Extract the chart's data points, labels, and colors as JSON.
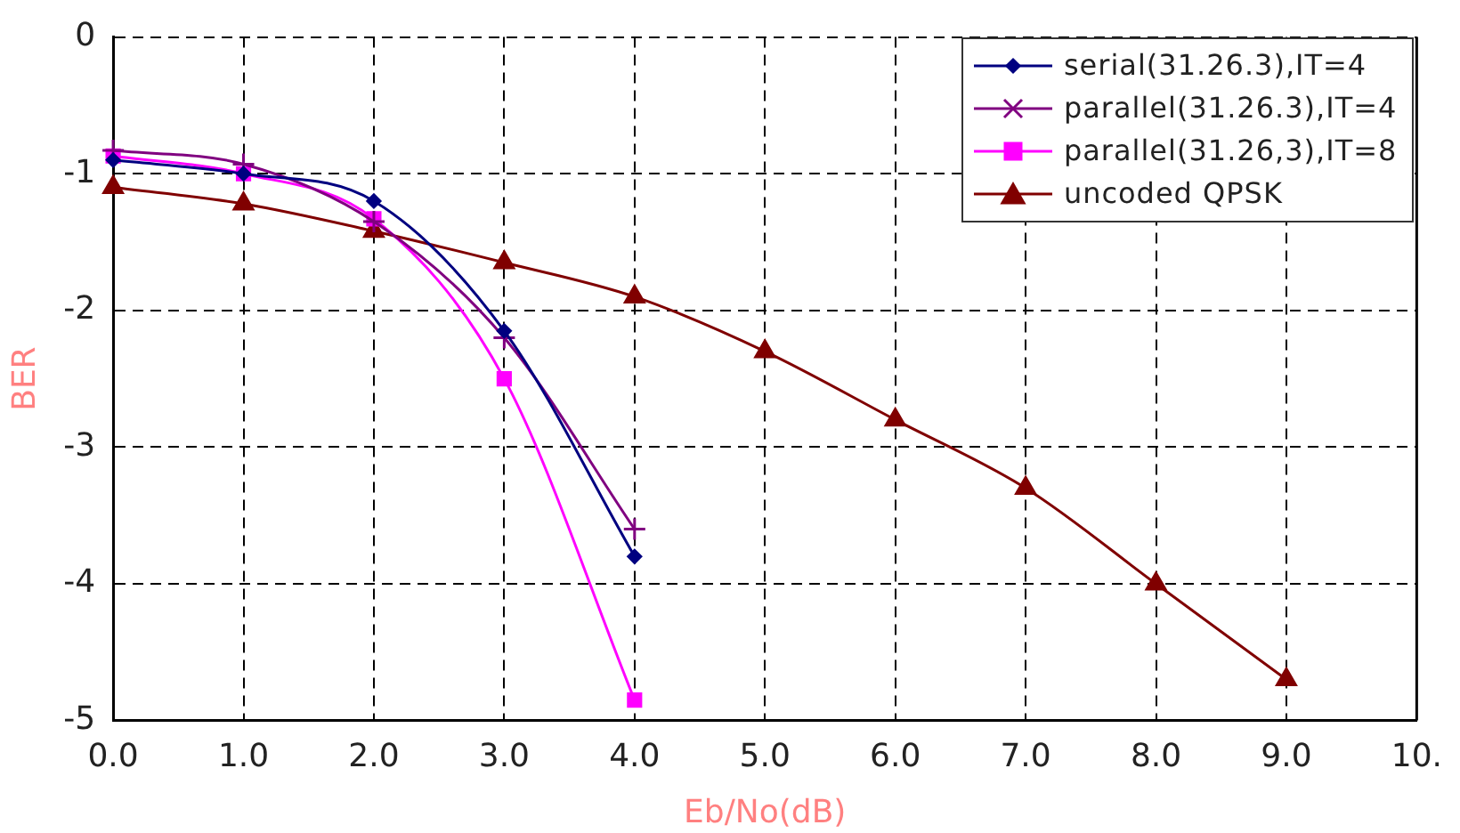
{
  "chart_data": {
    "type": "line",
    "xlabel": "Eb/No(dB)",
    "ylabel": "BER",
    "xlim": [
      0,
      10
    ],
    "ylim": [
      -5,
      0
    ],
    "xticks": [
      {
        "value": 0,
        "label": "0.0"
      },
      {
        "value": 1,
        "label": "1.0"
      },
      {
        "value": 2,
        "label": "2.0"
      },
      {
        "value": 3,
        "label": "3.0"
      },
      {
        "value": 4,
        "label": "4.0"
      },
      {
        "value": 5,
        "label": "5.0"
      },
      {
        "value": 6,
        "label": "6.0"
      },
      {
        "value": 7,
        "label": "7.0"
      },
      {
        "value": 8,
        "label": "8.0"
      },
      {
        "value": 9,
        "label": "9.0"
      },
      {
        "value": 10,
        "label": "10."
      }
    ],
    "yticks": [
      0,
      -1,
      -2,
      -3,
      -4,
      -5
    ],
    "grid": true,
    "legend": "top right",
    "series": [
      {
        "name": "serial(31.26.3),IT=4",
        "color": "#000080",
        "marker": "diamond",
        "x": [
          0,
          1,
          2,
          3,
          4
        ],
        "values": [
          -0.9,
          -1.0,
          -1.2,
          -2.15,
          -3.8
        ]
      },
      {
        "name": "parallel(31.26.3),IT=4",
        "color": "#800080",
        "marker": "cross",
        "x": [
          0,
          1,
          2,
          3,
          4
        ],
        "values": [
          -0.83,
          -0.93,
          -1.35,
          -2.2,
          -3.6
        ]
      },
      {
        "name": "parallel(31.26,3),IT=8",
        "color": "#ff00ff",
        "marker": "square",
        "x": [
          0,
          1,
          2,
          3,
          4
        ],
        "values": [
          -0.87,
          -1.0,
          -1.33,
          -2.5,
          -4.85
        ]
      },
      {
        "name": "uncoded QPSK",
        "color": "#800000",
        "marker": "triangle",
        "x": [
          0,
          1,
          2,
          3,
          4,
          5,
          6,
          7,
          8,
          9
        ],
        "values": [
          -1.1,
          -1.22,
          -1.42,
          -1.65,
          -1.9,
          -2.3,
          -2.8,
          -3.3,
          -4.0,
          -4.7
        ]
      }
    ]
  }
}
